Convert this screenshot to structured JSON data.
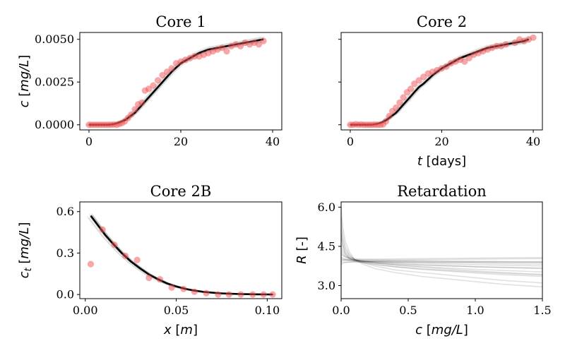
{
  "chart_data": [
    {
      "type": "scatter",
      "title": "Core 1",
      "xlabel": "",
      "ylabel": "c [mg/L]",
      "xlim": [
        -2,
        42
      ],
      "ylim": [
        -0.0003,
        0.0054
      ],
      "xticks": [
        0,
        20,
        40
      ],
      "xtick_labels": [
        "0",
        "20",
        "40"
      ],
      "yticks": [
        0,
        0.0025,
        0.005
      ],
      "ytick_labels": [
        "0.0000",
        "0.0025",
        "0.0050"
      ],
      "grid": false,
      "observed": {
        "x": [
          0,
          0.6,
          1.2,
          1.8,
          2.4,
          3.0,
          3.6,
          4.2,
          4.8,
          5.4,
          6.0,
          6.6,
          7.2,
          7.8,
          8.5,
          9.2,
          10.0,
          10.7,
          11.5,
          12.2,
          13.0,
          14.0,
          15.0,
          16.0,
          17.0,
          18.0,
          19.0,
          20.0,
          21.0,
          22.0,
          23.0,
          24.0,
          25.0,
          26.0,
          27.0,
          28.0,
          29.0,
          30.0,
          31.0,
          32.0,
          33.0,
          34.0,
          35.0,
          36.0,
          37.0,
          38.0
        ],
        "y": [
          0.0,
          0.0,
          0.0,
          0.0,
          0.0,
          0.0,
          0.0,
          0.0,
          0.0,
          2e-05,
          0.0,
          5e-05,
          0.0001,
          0.0002,
          0.0004,
          0.0006,
          0.0009,
          0.0012,
          0.0013,
          0.002,
          0.0021,
          0.0023,
          0.0026,
          0.0029,
          0.0031,
          0.0033,
          0.0036,
          0.0037,
          0.0038,
          0.0039,
          0.004,
          0.004,
          0.0041,
          0.0042,
          0.0043,
          0.0044,
          0.0045,
          0.0043,
          0.0046,
          0.0047,
          0.0046,
          0.0048,
          0.0047,
          0.0048,
          0.0047,
          0.0049
        ]
      },
      "fit": {
        "x": [
          0,
          2,
          4,
          5,
          6,
          7,
          8,
          9,
          10,
          11,
          12,
          13,
          14,
          15,
          16,
          17,
          18,
          20,
          22,
          24,
          26,
          28,
          30,
          32,
          34,
          36,
          38
        ],
        "y": [
          0.0,
          0.0,
          0.0,
          2e-05,
          8e-05,
          0.00018,
          0.0003,
          0.0005,
          0.0007,
          0.001,
          0.0013,
          0.0016,
          0.0019,
          0.0022,
          0.0025,
          0.0028,
          0.0031,
          0.0036,
          0.0039,
          0.0042,
          0.0044,
          0.0045,
          0.0046,
          0.0047,
          0.0048,
          0.0049,
          0.005
        ]
      }
    },
    {
      "type": "scatter",
      "title": "Core 2",
      "xlabel": "t [days]",
      "ylabel": "",
      "xlim": [
        -2,
        42
      ],
      "ylim": [
        -0.0003,
        0.0054
      ],
      "xticks": [
        0,
        20,
        40
      ],
      "xtick_labels": [
        "0",
        "20",
        "40"
      ],
      "yticks": [
        0,
        0.0025,
        0.005
      ],
      "ytick_labels": [],
      "grid": false,
      "observed": {
        "x": [
          0,
          0.6,
          1.2,
          1.8,
          2.4,
          3.0,
          3.6,
          4.2,
          4.8,
          5.4,
          6.0,
          6.6,
          7.2,
          7.8,
          8.5,
          9.2,
          10.0,
          10.8,
          11.6,
          12.4,
          13.2,
          14.0,
          15.0,
          16.0,
          17.0,
          18.0,
          19.0,
          20.0,
          21.0,
          22.0,
          23.0,
          24.0,
          25.0,
          26.0,
          27.0,
          28.0,
          29.0,
          30.0,
          31.0,
          32.0,
          33.0,
          34.0,
          36.0,
          37.0,
          38.0,
          39.0,
          40.0
        ],
        "y": [
          0.0,
          0.0,
          3e-05,
          0.0,
          2e-05,
          0.0,
          0.0,
          0.0,
          0.0,
          1e-05,
          0.0,
          0.0,
          3e-05,
          0.0002,
          0.0005,
          0.0008,
          0.001,
          0.0013,
          0.0016,
          0.0019,
          0.0021,
          0.0024,
          0.0026,
          0.0028,
          0.003,
          0.0031,
          0.0032,
          0.0033,
          0.0034,
          0.0036,
          0.0037,
          0.0038,
          0.0037,
          0.0039,
          0.0041,
          0.0042,
          0.0043,
          0.0044,
          0.0045,
          0.0046,
          0.0046,
          0.0047,
          0.0048,
          0.005,
          0.0049,
          0.005,
          0.0051
        ]
      },
      "fit": {
        "x": [
          0,
          2,
          4,
          5,
          6,
          7,
          8,
          9,
          10,
          11,
          12,
          13,
          14,
          15,
          16,
          18,
          20,
          22,
          24,
          26,
          28,
          30,
          32,
          34,
          36,
          38,
          39
        ],
        "y": [
          0.0,
          0.0,
          0.0,
          1e-05,
          6e-05,
          0.00015,
          0.0003,
          0.0005,
          0.0007,
          0.001,
          0.0013,
          0.0016,
          0.0019,
          0.0022,
          0.0024,
          0.0029,
          0.0033,
          0.0036,
          0.0039,
          0.0041,
          0.0043,
          0.0045,
          0.0046,
          0.0047,
          0.0048,
          0.0049,
          0.005
        ]
      }
    },
    {
      "type": "scatter",
      "title": "Core 2B",
      "xlabel": "x [m]",
      "ylabel": "ct [mg/L]",
      "xlim": [
        -0.003,
        0.108
      ],
      "ylim": [
        -0.03,
        0.67
      ],
      "xticks": [
        0,
        0.05,
        0.1
      ],
      "xtick_labels": [
        "0.00",
        "0.05",
        "0.10"
      ],
      "yticks": [
        0,
        0.3,
        0.6
      ],
      "ytick_labels": [
        "0.0",
        "0.3",
        "0.6"
      ],
      "grid": false,
      "observed": {
        "x": [
          0.003,
          0.0095,
          0.016,
          0.022,
          0.0285,
          0.035,
          0.041,
          0.0475,
          0.054,
          0.06,
          0.0665,
          0.073,
          0.079,
          0.0855,
          0.092,
          0.098,
          0.103
        ],
        "y": [
          0.22,
          0.47,
          0.36,
          0.28,
          0.25,
          0.12,
          0.11,
          0.05,
          0.04,
          0.02,
          0.01,
          0.0,
          0.0,
          0.0,
          0.0,
          0.0,
          0.0
        ]
      },
      "fit": {
        "x": [
          0.003,
          0.007,
          0.011,
          0.015,
          0.02,
          0.025,
          0.03,
          0.035,
          0.04,
          0.045,
          0.05,
          0.055,
          0.06,
          0.065,
          0.07,
          0.075,
          0.08,
          0.085,
          0.09,
          0.095,
          0.1,
          0.103
        ],
        "y": [
          0.57,
          0.5,
          0.43,
          0.37,
          0.3,
          0.24,
          0.19,
          0.145,
          0.11,
          0.08,
          0.058,
          0.041,
          0.028,
          0.019,
          0.013,
          0.008,
          0.005,
          0.003,
          0.002,
          0.001,
          0.0005,
          0.0
        ]
      }
    },
    {
      "type": "line",
      "title": "Retardation",
      "xlabel": "c [mg/L]",
      "ylabel": "R [-]",
      "xlim": [
        0,
        1.5
      ],
      "ylim": [
        2.5,
        6.2
      ],
      "xticks": [
        0,
        0.5,
        1.0,
        1.5
      ],
      "xtick_labels": [
        "0.0",
        "0.5",
        "1.0",
        "1.5"
      ],
      "yticks": [
        3.0,
        4.5,
        6.0
      ],
      "ytick_labels": [
        "3.0",
        "4.5",
        "6.0"
      ],
      "grid": false,
      "x": [
        0.001,
        0.01,
        0.03,
        0.06,
        0.1,
        0.15,
        0.25,
        0.4,
        0.6,
        0.8,
        1.0,
        1.2,
        1.5
      ],
      "series": [
        {
          "values": [
            6.0,
            5.3,
            4.7,
            4.3,
            4.0,
            3.85,
            3.65,
            3.5,
            3.35,
            3.25,
            3.15,
            3.05,
            2.95
          ]
        },
        {
          "values": [
            5.6,
            5.0,
            4.5,
            4.2,
            4.0,
            3.9,
            3.75,
            3.6,
            3.5,
            3.4,
            3.3,
            3.2,
            3.1
          ]
        },
        {
          "values": [
            5.2,
            4.8,
            4.4,
            4.15,
            4.0,
            3.92,
            3.82,
            3.72,
            3.62,
            3.55,
            3.48,
            3.42,
            3.35
          ]
        },
        {
          "values": [
            4.9,
            4.6,
            4.3,
            4.1,
            4.0,
            3.95,
            3.88,
            3.8,
            3.73,
            3.67,
            3.62,
            3.58,
            3.52
          ]
        },
        {
          "values": [
            4.6,
            4.4,
            4.2,
            4.05,
            3.98,
            3.94,
            3.9,
            3.85,
            3.8,
            3.76,
            3.72,
            3.69,
            3.65
          ]
        },
        {
          "values": [
            4.3,
            4.2,
            4.1,
            4.02,
            3.97,
            3.95,
            3.92,
            3.88,
            3.85,
            3.82,
            3.8,
            3.78,
            3.75
          ]
        },
        {
          "values": [
            4.1,
            4.06,
            4.02,
            3.99,
            3.96,
            3.95,
            3.93,
            3.91,
            3.89,
            3.87,
            3.86,
            3.84,
            3.82
          ]
        },
        {
          "values": [
            4.0,
            3.99,
            3.98,
            3.97,
            3.96,
            3.95,
            3.94,
            3.93,
            3.92,
            3.91,
            3.9,
            3.89,
            3.88
          ]
        },
        {
          "values": [
            3.9,
            3.9,
            3.9,
            3.9,
            3.9,
            3.9,
            3.9,
            3.9,
            3.9,
            3.9,
            3.9,
            3.9,
            3.9
          ]
        },
        {
          "values": [
            4.2,
            4.15,
            4.1,
            4.06,
            4.03,
            4.01,
            3.99,
            3.97,
            3.95,
            3.94,
            3.93,
            3.92,
            3.91
          ]
        },
        {
          "values": [
            3.8,
            3.85,
            3.88,
            3.9,
            3.92,
            3.93,
            3.95,
            3.97,
            3.99,
            4.0,
            4.01,
            4.02,
            4.03
          ]
        },
        {
          "values": [
            4.4,
            4.3,
            4.15,
            4.05,
            3.98,
            3.93,
            3.86,
            3.78,
            3.7,
            3.63,
            3.56,
            3.5,
            3.43
          ]
        },
        {
          "values": [
            5.0,
            4.6,
            4.25,
            4.05,
            3.95,
            3.88,
            3.8,
            3.72,
            3.64,
            3.58,
            3.52,
            3.47,
            3.4
          ]
        },
        {
          "values": [
            3.95,
            3.96,
            3.97,
            3.98,
            3.99,
            4.0,
            4.01,
            4.02,
            4.03,
            4.04,
            4.05,
            4.06,
            4.07
          ]
        },
        {
          "values": [
            4.05,
            4.02,
            3.99,
            3.96,
            3.93,
            3.9,
            3.86,
            3.82,
            3.78,
            3.75,
            3.72,
            3.7,
            3.67
          ]
        }
      ]
    }
  ],
  "colors": {
    "observed_marker": "#f05050",
    "fit_line": "#000000",
    "axis": "#000000"
  }
}
